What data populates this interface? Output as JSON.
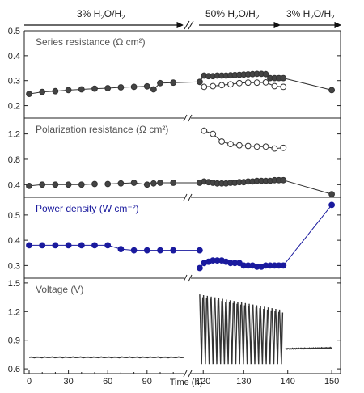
{
  "header_segments": [
    {
      "label": "3% H",
      "sub": "2",
      "mid": "O/H",
      "sub2": "2"
    },
    {
      "label": "50% H",
      "sub": "2",
      "mid": "O/H",
      "sub2": "2"
    },
    {
      "label": "3% H",
      "sub": "2",
      "mid": "O/H",
      "sub2": "2"
    }
  ],
  "chart_data": {
    "type": "line",
    "xlabel": "Time (h)",
    "x_ticks": [
      "0",
      "30",
      "60",
      "90",
      "120",
      "130",
      "140",
      "150"
    ],
    "x_segments": [
      {
        "xlim": [
          0,
          118
        ],
        "note": "linear 0-118 h"
      },
      {
        "xlim": [
          118,
          152
        ],
        "note": "expanded 118-152 h after axis break"
      }
    ],
    "panels": [
      {
        "label": "Series resistance (Ω cm²)",
        "label_color": "#555555",
        "ylim": [
          0.15,
          0.5
        ],
        "yticks": [
          "0.5",
          "0.4",
          "0.3",
          "0.2"
        ],
        "ytick_values": [
          0.5,
          0.4,
          0.3,
          0.2
        ],
        "series": [
          {
            "style": "filled",
            "x": [
              0,
              10,
              20,
              30,
              40,
              50,
              60,
              70,
              80,
              90,
              95,
              100,
              110,
              120,
              121,
              122,
              123,
              124,
              125,
              126,
              127,
              128,
              129,
              130,
              131,
              132,
              133,
              134,
              135,
              136,
              137,
              138,
              139,
              150
            ],
            "y": [
              0.247,
              0.255,
              0.258,
              0.262,
              0.265,
              0.268,
              0.27,
              0.273,
              0.275,
              0.277,
              0.265,
              0.29,
              0.292,
              0.295,
              0.32,
              0.318,
              0.318,
              0.32,
              0.32,
              0.32,
              0.321,
              0.322,
              0.323,
              0.324,
              0.325,
              0.326,
              0.327,
              0.327,
              0.326,
              0.31,
              0.31,
              0.31,
              0.31,
              0.262
            ]
          },
          {
            "style": "open",
            "x": [
              121,
              123,
              125,
              127,
              129,
              131,
              133,
              135,
              137,
              139
            ],
            "y": [
              0.275,
              0.278,
              0.282,
              0.285,
              0.29,
              0.292,
              0.292,
              0.293,
              0.278,
              0.275
            ]
          }
        ]
      },
      {
        "label": "Polarization resistance (Ω cm²)",
        "label_color": "#555555",
        "ylim": [
          0.2,
          1.45
        ],
        "yticks": [
          "1.2",
          "0.8",
          "0.4"
        ],
        "ytick_values": [
          1.2,
          0.8,
          0.4
        ],
        "series": [
          {
            "style": "filled",
            "x": [
              0,
              10,
              20,
              30,
              40,
              50,
              60,
              70,
              80,
              90,
              95,
              100,
              110,
              120,
              121,
              122,
              123,
              124,
              125,
              126,
              127,
              128,
              129,
              130,
              131,
              132,
              133,
              134,
              135,
              136,
              137,
              138,
              139,
              150
            ],
            "y": [
              0.38,
              0.4,
              0.4,
              0.4,
              0.4,
              0.41,
              0.41,
              0.42,
              0.43,
              0.4,
              0.42,
              0.43,
              0.43,
              0.43,
              0.45,
              0.44,
              0.43,
              0.42,
              0.42,
              0.42,
              0.43,
              0.43,
              0.44,
              0.44,
              0.45,
              0.45,
              0.46,
              0.46,
              0.46,
              0.46,
              0.47,
              0.47,
              0.47,
              0.25
            ]
          },
          {
            "style": "open",
            "x": [
              121,
              123,
              125,
              127,
              129,
              131,
              133,
              135,
              137,
              139
            ],
            "y": [
              1.25,
              1.2,
              1.08,
              1.04,
              1.02,
              1.01,
              1.0,
              1.0,
              0.97,
              0.98
            ]
          }
        ]
      },
      {
        "label": "Power density (W cm⁻²)",
        "label_color": "#1a1a9e",
        "ylim": [
          0.25,
          0.57
        ],
        "yticks": [
          "0.5",
          "0.4",
          "0.3"
        ],
        "ytick_values": [
          0.5,
          0.4,
          0.3
        ],
        "series": [
          {
            "style": "blue",
            "x": [
              0,
              10,
              20,
              30,
              40,
              50,
              60,
              70,
              80,
              90,
              100,
              110,
              120
            ],
            "y": [
              0.38,
              0.38,
              0.38,
              0.38,
              0.38,
              0.38,
              0.38,
              0.365,
              0.36,
              0.36,
              0.36,
              0.36,
              0.36
            ]
          },
          {
            "style": "blue",
            "x": [
              120,
              121,
              122,
              123,
              124,
              125,
              126,
              127,
              128,
              129,
              130,
              131,
              132,
              133,
              134,
              135,
              136,
              137,
              138,
              139,
              150
            ],
            "y": [
              0.29,
              0.31,
              0.315,
              0.32,
              0.32,
              0.32,
              0.315,
              0.31,
              0.31,
              0.31,
              0.3,
              0.3,
              0.3,
              0.295,
              0.295,
              0.3,
              0.3,
              0.3,
              0.3,
              0.3,
              0.54
            ]
          }
        ]
      },
      {
        "label": "Voltage (V)",
        "label_color": "#555555",
        "ylim": [
          0.55,
          1.55
        ],
        "yticks": [
          "1.5",
          "1.2",
          "0.9",
          "0.6"
        ],
        "ytick_values": [
          1.5,
          1.2,
          0.9,
          0.6
        ],
        "series": [
          {
            "style": "trace",
            "segment": "steady",
            "x": [
              0,
              118
            ],
            "y": [
              0.72,
              0.72
            ]
          },
          {
            "style": "trace",
            "segment": "cycling",
            "x_range": [
              120,
              139
            ],
            "cycles": 22,
            "y_high_range": [
              1.38,
              1.22
            ],
            "y_low": 0.65
          },
          {
            "style": "trace",
            "segment": "steady",
            "x": [
              139.5,
              150
            ],
            "y": [
              0.81,
              0.82
            ]
          }
        ]
      }
    ]
  }
}
